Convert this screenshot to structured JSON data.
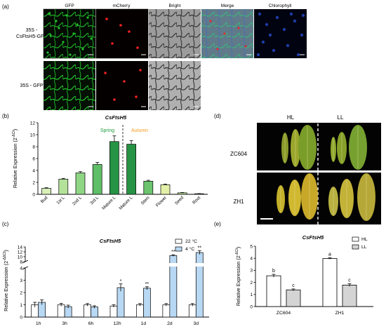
{
  "panel_a": {
    "label": "(a)",
    "channels": [
      "GFP",
      "mCherry",
      "Bright",
      "Merge",
      "Chlorophyll"
    ],
    "rows": [
      {
        "line1": "35S -",
        "line2": "CsFtsH5-GFP"
      },
      {
        "line1": "35S - GFP",
        "line2": ""
      }
    ],
    "channel_colors": {
      "GFP": "#22c02a",
      "mCherry": "#ee2222",
      "Chlorophyll": "#2a4fd8"
    }
  },
  "panel_d": {
    "label": "(d)",
    "col_labels": [
      "HL",
      "LL"
    ],
    "row_labels": [
      "ZC604",
      "ZH1"
    ]
  },
  "chart_data": [
    {
      "id": "b",
      "panel_label": "(b)",
      "type": "bar",
      "title": "CsFtsH5",
      "ylabel": "Relative Expression (2",
      "ylabel_sup": "-ΔCt",
      "ylabel_close": ")",
      "ylim": [
        0,
        12
      ],
      "yticks": [
        "0",
        "2",
        "4",
        "6",
        "8",
        "10",
        "12"
      ],
      "groups": [
        {
          "name": "Spring",
          "color": "#1e9a3a"
        },
        {
          "name": "Autumn",
          "color": "#f59a1a"
        }
      ],
      "categories": [
        "Bud",
        "1st L",
        "2nd L",
        "3rd L",
        "Mature L",
        "Mature L",
        "Stem",
        "Flower",
        "Seed",
        "Root"
      ],
      "values": [
        1.0,
        2.55,
        3.6,
        5.0,
        8.85,
        8.4,
        2.2,
        1.6,
        0.25,
        0.1
      ],
      "errors": [
        0.1,
        0.12,
        0.2,
        0.35,
        0.95,
        0.6,
        0.15,
        0.12,
        0.05,
        0.03
      ],
      "colors": [
        "#d8efb8",
        "#b4e29a",
        "#8ed684",
        "#5fbe68",
        "#279345",
        "#279345",
        "#6cc46e",
        "#e3f0a8",
        "#bde29c",
        "#a2d48e"
      ]
    },
    {
      "id": "c",
      "panel_label": "(c)",
      "type": "bar",
      "title": "CsFtsH5",
      "ylabel": "Relative Expression (2",
      "ylabel_sup": "-ΔΔCt",
      "ylabel_close": ")",
      "lower_range": [
        0,
        4
      ],
      "lower_ticks": [
        "0",
        "1",
        "2",
        "3",
        "4"
      ],
      "upper_range": [
        8,
        14
      ],
      "upper_ticks": [
        "8",
        "10",
        "12",
        "14"
      ],
      "categories": [
        "1h",
        "3h",
        "6h",
        "12h",
        "1d",
        "2d",
        "3d"
      ],
      "series": [
        {
          "name": "22 °C",
          "color": "#ffffff",
          "values": [
            1.0,
            1.0,
            1.0,
            0.9,
            1.0,
            1.0,
            1.0
          ],
          "errors": [
            0.2,
            0.12,
            0.1,
            0.1,
            0.1,
            0.1,
            0.1
          ]
        },
        {
          "name": "4 °C",
          "color": "#b8d8f3",
          "values": [
            1.2,
            0.85,
            0.82,
            2.4,
            2.35,
            10.5,
            11.7
          ],
          "errors": [
            0.2,
            0.12,
            0.1,
            0.3,
            0.12,
            0.3,
            0.8
          ]
        }
      ],
      "significance": [
        "",
        "",
        "",
        "*",
        "**",
        "**",
        "**"
      ]
    },
    {
      "id": "e",
      "panel_label": "(e)",
      "type": "bar",
      "title": "CsFtsH5",
      "ylabel": "Relative Expression (2",
      "ylabel_sup": "-ΔCt",
      "ylabel_close": ")",
      "ylim": [
        0,
        5
      ],
      "yticks": [
        "0",
        "1",
        "2",
        "3",
        "4",
        "5"
      ],
      "categories": [
        "ZC604",
        "ZH1"
      ],
      "series": [
        {
          "name": "HL",
          "color": "#ffffff",
          "values": [
            2.55,
            3.98
          ],
          "errors": [
            0.12,
            0.06
          ],
          "letters": [
            "b",
            "a"
          ]
        },
        {
          "name": "LL",
          "color": "#d4d4d4",
          "values": [
            1.38,
            1.78
          ],
          "errors": [
            0.08,
            0.12
          ],
          "letters": [
            "c",
            "c"
          ]
        }
      ]
    }
  ]
}
